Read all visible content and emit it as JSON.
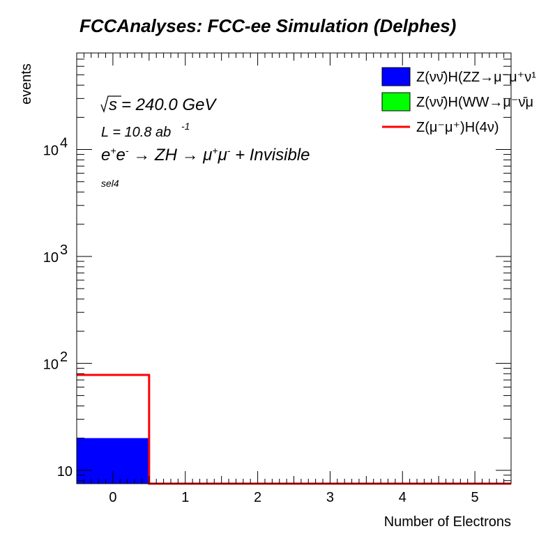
{
  "header": {
    "title": "FCCAnalyses: FCC-ee Simulation (Delphes)"
  },
  "annotations": {
    "sqrt_s_prefix": "s",
    "sqrt_s_rest": " = 240.0 GeV",
    "lumi_prefix": "L = 10.8 ab",
    "lumi_exp": "-1",
    "selection": "sel4"
  },
  "colors": {
    "zz_fill": "#0000ff",
    "ww_fill": "#00ff00",
    "signal_line": "#ff0000",
    "frame": "#000000"
  },
  "chart_data": {
    "type": "bar",
    "title": "FCCAnalyses: FCC-ee Simulation (Delphes)",
    "xlabel": "Number of Electrons",
    "ylabel": "events",
    "xlim": [
      -0.5,
      5.5
    ],
    "ylim": [
      7.5,
      80000
    ],
    "yscale": "log",
    "x_ticks": [
      "0",
      "1",
      "2",
      "3",
      "4",
      "5"
    ],
    "y_ticks": [
      {
        "value": 10,
        "label": "10",
        "exp": ""
      },
      {
        "value": 100,
        "label": "10",
        "exp": "2"
      },
      {
        "value": 1000,
        "label": "10",
        "exp": "3"
      },
      {
        "value": 10000,
        "label": "10",
        "exp": "4"
      }
    ],
    "bin_edges": [
      -0.5,
      0.5,
      1.5,
      2.5,
      3.5,
      4.5,
      5.5
    ],
    "legend_position": "top-right",
    "series": [
      {
        "name": "Z(νν̄)H(ZZ→μ⁻μ⁺ν¹",
        "style": "filled",
        "values": [
          20,
          0,
          0,
          0,
          0,
          0
        ]
      },
      {
        "name": "Z(νν̄)H(WW→μ⁻ν̄μ",
        "style": "filled",
        "values": [
          0,
          0,
          0,
          0,
          0,
          0
        ]
      },
      {
        "name": "Z(μ⁻μ⁺)H(4ν)",
        "style": "line",
        "values": [
          78,
          0,
          0,
          0,
          0,
          0
        ]
      }
    ]
  }
}
